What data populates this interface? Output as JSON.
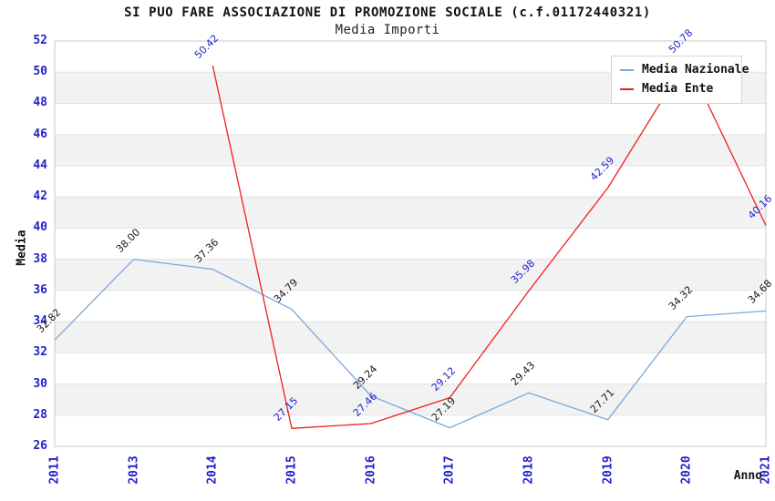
{
  "colors": {
    "axis_text": "#2222cc",
    "title_text": "#111111",
    "band": "#f2f2f2",
    "grid": "#e3e3e3",
    "plot_border": "#c9c9c9",
    "legend_border": "#d4d4d4",
    "legend_background": "#ffffff",
    "national_line": "#7aa9dd",
    "entity_line": "#ee1f1f",
    "national_label": "#1a1a1a",
    "entity_label": "#2222cc"
  },
  "icons": {
    "national_swatch": "line-dash-icon",
    "entity_swatch": "line-dash-icon"
  },
  "chart_data": {
    "type": "line",
    "title": "SI PUO FARE ASSOCIAZIONE DI PROMOZIONE SOCIALE (c.f.01172440321)",
    "subtitle": "Media Importi",
    "xlabel": "Anno",
    "ylabel": "Media",
    "categories": [
      "2011",
      "2013",
      "2014",
      "2015",
      "2016",
      "2017",
      "2018",
      "2019",
      "2020",
      "2021"
    ],
    "series": [
      {
        "name": "Media Nazionale",
        "color": "#7aa9dd",
        "label_color": "#1a1a1a",
        "values": [
          32.82,
          38.0,
          37.36,
          34.79,
          29.24,
          27.19,
          29.43,
          27.71,
          34.32,
          34.68
        ]
      },
      {
        "name": "Media Ente",
        "color": "#ee1f1f",
        "label_color": "#2222cc",
        "values": [
          null,
          null,
          50.42,
          27.15,
          27.46,
          29.12,
          35.98,
          42.59,
          50.78,
          40.16
        ]
      }
    ],
    "ylim": [
      26,
      52
    ],
    "ytick_step": 2,
    "grid": "horizontal-bands-alternating",
    "legend_position": "top-right",
    "data_labels": "all-points-rotated-45",
    "x_tick_rotation": -90
  }
}
